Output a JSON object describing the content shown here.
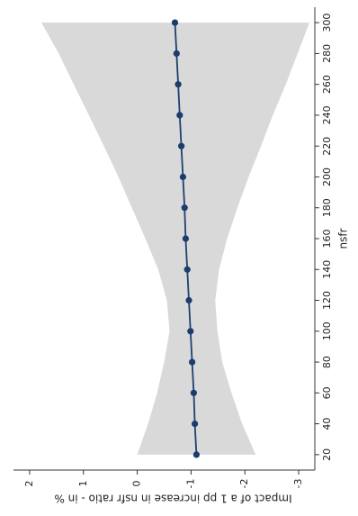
{
  "chart_data": {
    "type": "line",
    "orientation": "rotated-90",
    "title": "",
    "xlabel": "nsfr",
    "ylabel": "Impact of a 1 pp increase in nsfr ratio - in %",
    "xlim": [
      10,
      310
    ],
    "ylim": [
      2.3,
      -3.3
    ],
    "x_ticks": [
      20,
      40,
      60,
      80,
      100,
      120,
      140,
      160,
      180,
      200,
      220,
      240,
      260,
      280,
      300
    ],
    "y_ticks": [
      2,
      1,
      0,
      -1,
      -2,
      -3
    ],
    "grid": false,
    "legend": "none",
    "colors": {
      "line": "#1f3f6e",
      "marker": "#1a3d6d",
      "band": "#d9d9d9",
      "axis": "#333333"
    },
    "series": [
      {
        "x": [
          20,
          40,
          60,
          80,
          100,
          120,
          140,
          160,
          180,
          200,
          220,
          240,
          260,
          280,
          300
        ],
        "y": [
          -1.1,
          -1.07,
          -1.05,
          -1.02,
          -0.99,
          -0.96,
          -0.93,
          -0.9,
          -0.88,
          -0.85,
          -0.82,
          -0.79,
          -0.76,
          -0.73,
          -0.7
        ],
        "lower": [
          -2.2,
          -1.95,
          -1.75,
          -1.58,
          -1.49,
          -1.45,
          -1.52,
          -1.67,
          -1.86,
          -2.07,
          -2.3,
          -2.52,
          -2.76,
          -2.98,
          -3.2
        ],
        "upper": [
          0.0,
          -0.2,
          -0.37,
          -0.5,
          -0.6,
          -0.55,
          -0.39,
          -0.15,
          0.1,
          0.35,
          0.62,
          0.9,
          1.18,
          1.46,
          1.78
        ]
      }
    ]
  }
}
